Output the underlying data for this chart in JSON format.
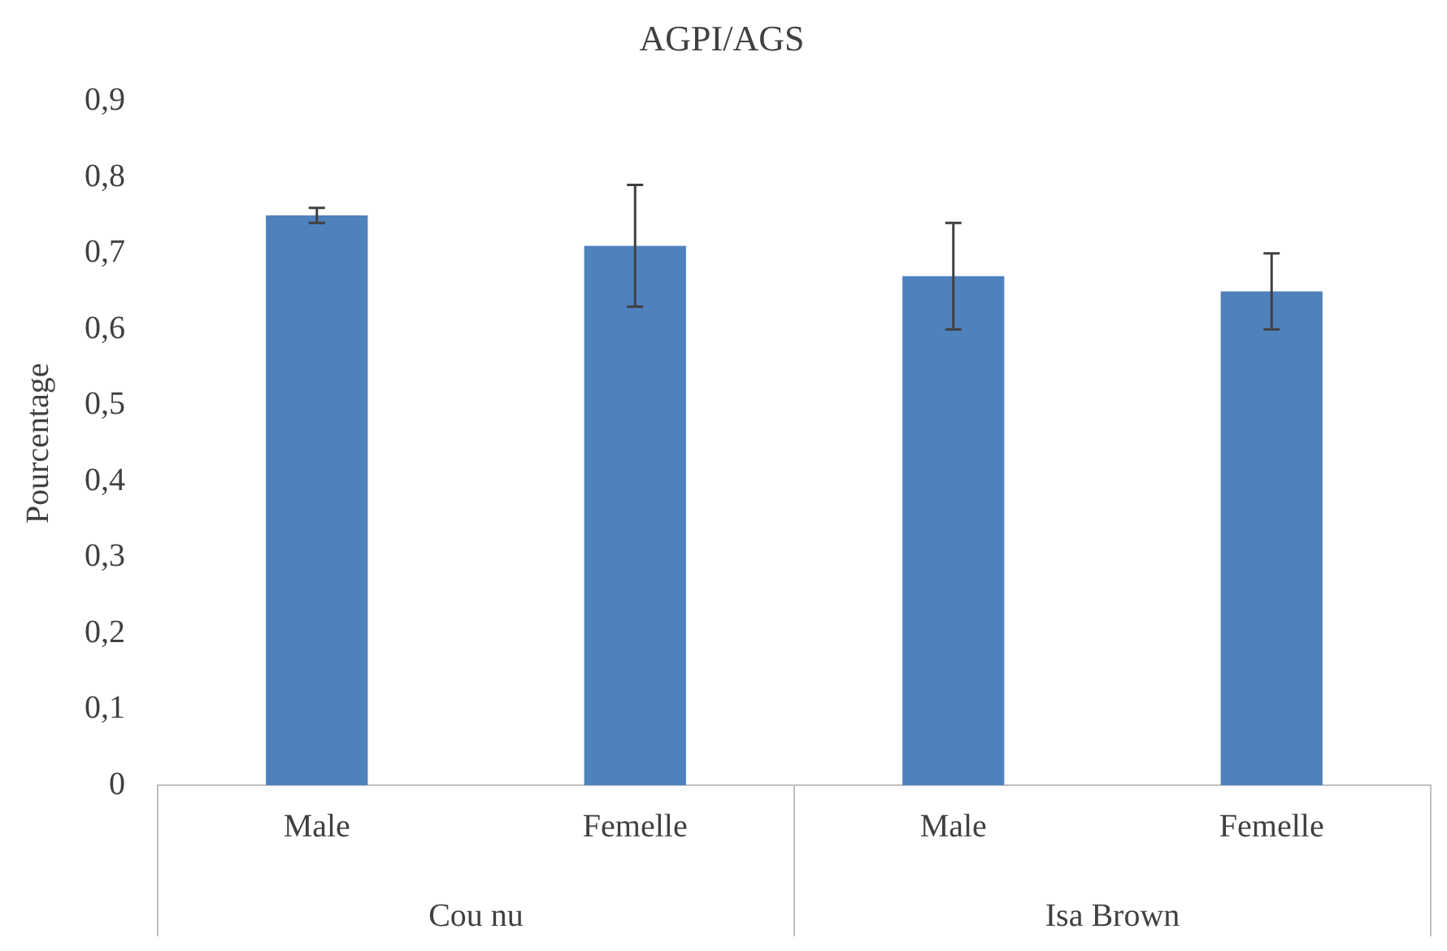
{
  "chart_data": {
    "type": "bar",
    "title": "AGPI/AGS",
    "ylabel": "Pourcentage",
    "categories": [
      "Male",
      "Femelle",
      "Male",
      "Femelle"
    ],
    "values": [
      0.75,
      0.71,
      0.67,
      0.65
    ],
    "color": "#4f81bd",
    "errors": [
      0.01,
      0.08,
      0.07,
      0.05
    ],
    "ylim": [
      0,
      0.9
    ],
    "yticks": [
      {
        "value": 0,
        "label": "0"
      },
      {
        "value": 0.1,
        "label": "0,1"
      },
      {
        "value": 0.2,
        "label": "0,2"
      },
      {
        "value": 0.3,
        "label": "0,3"
      },
      {
        "value": 0.4,
        "label": "0,4"
      },
      {
        "value": 0.5,
        "label": "0,5"
      },
      {
        "value": 0.6,
        "label": "0,6"
      },
      {
        "value": 0.7,
        "label": "0,7"
      },
      {
        "value": 0.8,
        "label": "0,8"
      },
      {
        "value": 0.9,
        "label": "0,9"
      }
    ],
    "annotations": [
      "Cou nu",
      "Isa Brown"
    ],
    "grid": false,
    "legend": false
  }
}
